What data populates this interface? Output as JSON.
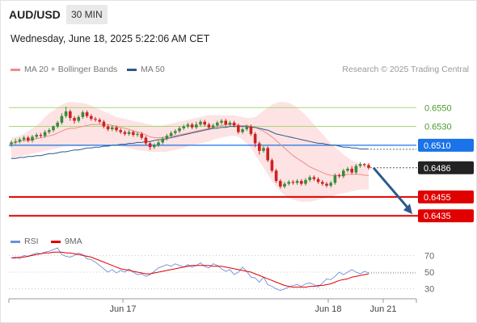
{
  "header": {
    "symbol": "AUD/USD",
    "interval": "30 MIN"
  },
  "datetime": "Wednesday, June 18, 2025 5:22:06 AM CET",
  "legend": {
    "ma20_label": "MA 20 + Bollinger Bands",
    "ma20_color": "#f08c8c",
    "ma50_label": "MA 50",
    "ma50_color": "#2d5a8e",
    "credit": "Research © 2025 Trading Central"
  },
  "rsi_legend": {
    "rsi_label": "RSI",
    "rsi_color": "#6b8fdc",
    "ma9_label": "9MA",
    "ma9_color": "#e00000"
  },
  "chart_data": [
    {
      "type": "candlestick",
      "title": "AUD/USD",
      "ylim": [
        0.6424,
        0.6582
      ],
      "x_ticks": [
        "Jun 17",
        "Jun 18",
        "Jun 21"
      ],
      "levels": [
        {
          "value": 0.655,
          "label": "0.6550",
          "role": "resistance",
          "color": "#a8d878"
        },
        {
          "value": 0.653,
          "label": "0.6530",
          "role": "resistance",
          "color": "#a8d878"
        },
        {
          "value": 0.651,
          "label": "0.6510",
          "role": "pivot",
          "color": "#1a73e8"
        },
        {
          "value": 0.6486,
          "label": "0.6486",
          "role": "last",
          "color": "#222222"
        },
        {
          "value": 0.6455,
          "label": "0.6455",
          "role": "target",
          "color": "#e00000"
        },
        {
          "value": 0.6435,
          "label": "0.6435",
          "role": "target",
          "color": "#e00000"
        }
      ],
      "forecast_arrow": {
        "from": 0.6486,
        "to": 0.6435,
        "color": "#2d5a8e"
      },
      "candles": [
        [
          0.6511,
          0.6513,
          0.6508,
          0.6515
        ],
        [
          0.6513,
          0.6514,
          0.6511,
          0.6517
        ],
        [
          0.6514,
          0.6516,
          0.6512,
          0.6518
        ],
        [
          0.6516,
          0.6518,
          0.6514,
          0.652
        ],
        [
          0.6518,
          0.6515,
          0.6513,
          0.652
        ],
        [
          0.6515,
          0.6519,
          0.6513,
          0.6521
        ],
        [
          0.6519,
          0.6521,
          0.6517,
          0.6523
        ],
        [
          0.6521,
          0.652,
          0.6518,
          0.6523
        ],
        [
          0.652,
          0.6524,
          0.6518,
          0.6526
        ],
        [
          0.6524,
          0.6526,
          0.6522,
          0.6528
        ],
        [
          0.6526,
          0.653,
          0.6524,
          0.6531
        ],
        [
          0.653,
          0.6534,
          0.6528,
          0.6536
        ],
        [
          0.6534,
          0.6541,
          0.6532,
          0.6544
        ],
        [
          0.6541,
          0.6546,
          0.6539,
          0.6551
        ],
        [
          0.6546,
          0.6539,
          0.6536,
          0.6548
        ],
        [
          0.6539,
          0.6536,
          0.6533,
          0.6541
        ],
        [
          0.6536,
          0.654,
          0.6534,
          0.6542
        ],
        [
          0.654,
          0.6545,
          0.6538,
          0.6547
        ],
        [
          0.6545,
          0.6541,
          0.6539,
          0.6547
        ],
        [
          0.6541,
          0.6538,
          0.6536,
          0.6543
        ],
        [
          0.6538,
          0.6537,
          0.6535,
          0.654
        ],
        [
          0.6537,
          0.6535,
          0.6533,
          0.6539
        ],
        [
          0.6535,
          0.653,
          0.6528,
          0.6537
        ],
        [
          0.653,
          0.6527,
          0.6525,
          0.6532
        ],
        [
          0.6527,
          0.6529,
          0.6525,
          0.6531
        ],
        [
          0.6529,
          0.6526,
          0.6524,
          0.6531
        ],
        [
          0.6526,
          0.6524,
          0.6522,
          0.6528
        ],
        [
          0.6524,
          0.6522,
          0.652,
          0.6526
        ],
        [
          0.6522,
          0.6524,
          0.652,
          0.6526
        ],
        [
          0.6524,
          0.6521,
          0.6519,
          0.6526
        ],
        [
          0.6521,
          0.6522,
          0.6519,
          0.6524
        ],
        [
          0.6522,
          0.6518,
          0.6516,
          0.6524
        ],
        [
          0.6518,
          0.6512,
          0.651,
          0.652
        ],
        [
          0.6512,
          0.6508,
          0.6505,
          0.6514
        ],
        [
          0.6508,
          0.651,
          0.6506,
          0.6512
        ],
        [
          0.651,
          0.6513,
          0.6508,
          0.6515
        ],
        [
          0.6513,
          0.6517,
          0.6511,
          0.6519
        ],
        [
          0.6517,
          0.652,
          0.6515,
          0.6522
        ],
        [
          0.652,
          0.6523,
          0.6518,
          0.6525
        ],
        [
          0.6523,
          0.6525,
          0.6521,
          0.6527
        ],
        [
          0.6525,
          0.6528,
          0.6523,
          0.653
        ],
        [
          0.6528,
          0.653,
          0.6526,
          0.6532
        ],
        [
          0.653,
          0.6532,
          0.6528,
          0.6534
        ],
        [
          0.6532,
          0.6529,
          0.6527,
          0.6534
        ],
        [
          0.6529,
          0.6532,
          0.6527,
          0.6535
        ],
        [
          0.6532,
          0.6535,
          0.653,
          0.6537
        ],
        [
          0.6535,
          0.6532,
          0.653,
          0.6537
        ],
        [
          0.6532,
          0.6529,
          0.6527,
          0.6534
        ],
        [
          0.6529,
          0.6531,
          0.6527,
          0.6533
        ],
        [
          0.6531,
          0.6534,
          0.6529,
          0.6536
        ],
        [
          0.6534,
          0.6536,
          0.6532,
          0.6538
        ],
        [
          0.6536,
          0.6532,
          0.653,
          0.6538
        ],
        [
          0.6532,
          0.6534,
          0.653,
          0.6536
        ],
        [
          0.6534,
          0.6531,
          0.6529,
          0.6536
        ],
        [
          0.6531,
          0.6524,
          0.6522,
          0.6533
        ],
        [
          0.6524,
          0.6527,
          0.6522,
          0.6529
        ],
        [
          0.6527,
          0.653,
          0.6525,
          0.6532
        ],
        [
          0.653,
          0.6522,
          0.652,
          0.6532
        ],
        [
          0.6522,
          0.6512,
          0.6508,
          0.6524
        ],
        [
          0.6512,
          0.6504,
          0.65,
          0.6514
        ],
        [
          0.6504,
          0.6507,
          0.6502,
          0.6509
        ],
        [
          0.6507,
          0.6494,
          0.6492,
          0.6509
        ],
        [
          0.6494,
          0.6483,
          0.6481,
          0.6496
        ],
        [
          0.6483,
          0.6472,
          0.647,
          0.6485
        ],
        [
          0.6472,
          0.6466,
          0.6464,
          0.6474
        ],
        [
          0.6466,
          0.6469,
          0.6464,
          0.6471
        ],
        [
          0.6469,
          0.6471,
          0.6467,
          0.6473
        ],
        [
          0.6471,
          0.647,
          0.6468,
          0.6473
        ],
        [
          0.647,
          0.6472,
          0.6468,
          0.6474
        ],
        [
          0.6472,
          0.6469,
          0.6467,
          0.6474
        ],
        [
          0.6469,
          0.6473,
          0.6467,
          0.6475
        ],
        [
          0.6473,
          0.6476,
          0.6471,
          0.6478
        ],
        [
          0.6476,
          0.6474,
          0.6472,
          0.6478
        ],
        [
          0.6474,
          0.6471,
          0.6469,
          0.6476
        ],
        [
          0.6471,
          0.6469,
          0.6467,
          0.6473
        ],
        [
          0.6469,
          0.6467,
          0.6465,
          0.6471
        ],
        [
          0.6467,
          0.647,
          0.6465,
          0.6472
        ],
        [
          0.647,
          0.6478,
          0.6468,
          0.648
        ],
        [
          0.6478,
          0.6477,
          0.6475,
          0.648
        ],
        [
          0.6477,
          0.6483,
          0.6475,
          0.6485
        ],
        [
          0.6483,
          0.6485,
          0.6481,
          0.6487
        ],
        [
          0.6485,
          0.6481,
          0.6479,
          0.6488
        ],
        [
          0.6481,
          0.6488,
          0.6479,
          0.649
        ],
        [
          0.6488,
          0.649,
          0.6486,
          0.6492
        ],
        [
          0.649,
          0.6489,
          0.6487,
          0.6491
        ],
        [
          0.6489,
          0.6486,
          0.6484,
          0.6491
        ]
      ],
      "ma20": [
        0.6512,
        0.6513,
        0.6514,
        0.6515,
        0.6515,
        0.6516,
        0.6517,
        0.6518,
        0.6519,
        0.652,
        0.6521,
        0.6523,
        0.6525,
        0.6527,
        0.6528,
        0.6528,
        0.6529,
        0.653,
        0.6531,
        0.6532,
        0.6532,
        0.6532,
        0.6532,
        0.6532,
        0.6531,
        0.653,
        0.6529,
        0.6528,
        0.6527,
        0.6525,
        0.6524,
        0.6523,
        0.6521,
        0.6519,
        0.6518,
        0.6518,
        0.6518,
        0.6519,
        0.652,
        0.652,
        0.6521,
        0.6522,
        0.6523,
        0.6524,
        0.6525,
        0.6526,
        0.6527,
        0.6528,
        0.6529,
        0.653,
        0.6531,
        0.6532,
        0.6532,
        0.6532,
        0.6531,
        0.6531,
        0.6531,
        0.653,
        0.6529,
        0.6527,
        0.6525,
        0.6522,
        0.6519,
        0.6515,
        0.6511,
        0.6507,
        0.6503,
        0.6499,
        0.6496,
        0.6493,
        0.649,
        0.6487,
        0.6485,
        0.6483,
        0.6481,
        0.6479,
        0.6478,
        0.6478,
        0.6478,
        0.6478,
        0.6479,
        0.6479,
        0.6479,
        0.6479,
        0.6478,
        0.6478
      ],
      "bb_upper": [
        0.6518,
        0.6519,
        0.652,
        0.6522,
        0.6525,
        0.6528,
        0.6531,
        0.6535,
        0.654,
        0.6544,
        0.6547,
        0.655,
        0.6553,
        0.6555,
        0.6556,
        0.6556,
        0.6555,
        0.6555,
        0.6554,
        0.6552,
        0.655,
        0.6548,
        0.6546,
        0.6544,
        0.6542,
        0.654,
        0.6539,
        0.6538,
        0.6537,
        0.6536,
        0.6535,
        0.6534,
        0.6533,
        0.6532,
        0.6531,
        0.6531,
        0.6531,
        0.6532,
        0.6533,
        0.6534,
        0.6535,
        0.6536,
        0.6537,
        0.6538,
        0.6539,
        0.654,
        0.6541,
        0.6542,
        0.6542,
        0.6542,
        0.6542,
        0.6542,
        0.6542,
        0.6542,
        0.6541,
        0.654,
        0.6539,
        0.6539,
        0.654,
        0.6543,
        0.6547,
        0.655,
        0.6553,
        0.6555,
        0.6556,
        0.6556,
        0.6555,
        0.6553,
        0.655,
        0.6546,
        0.6542,
        0.6537,
        0.6532,
        0.6527,
        0.6522,
        0.6517,
        0.6512,
        0.6508,
        0.6504,
        0.65,
        0.6497,
        0.6494,
        0.6492,
        0.649,
        0.6489,
        0.6488
      ],
      "bb_lower": [
        0.6496,
        0.6497,
        0.6498,
        0.6499,
        0.65,
        0.6501,
        0.6502,
        0.6503,
        0.6504,
        0.6505,
        0.6506,
        0.6507,
        0.6508,
        0.6509,
        0.6509,
        0.6509,
        0.6509,
        0.6509,
        0.6509,
        0.651,
        0.651,
        0.6511,
        0.6511,
        0.6511,
        0.6511,
        0.651,
        0.6509,
        0.6508,
        0.6507,
        0.6506,
        0.6505,
        0.6504,
        0.6504,
        0.6503,
        0.6503,
        0.6503,
        0.6503,
        0.6503,
        0.6504,
        0.6505,
        0.6506,
        0.6507,
        0.6509,
        0.651,
        0.6511,
        0.6512,
        0.6513,
        0.6514,
        0.6516,
        0.6517,
        0.6518,
        0.6519,
        0.652,
        0.652,
        0.6519,
        0.6516,
        0.6512,
        0.6507,
        0.65,
        0.6493,
        0.6486,
        0.6479,
        0.6472,
        0.6466,
        0.6461,
        0.6457,
        0.6454,
        0.6452,
        0.6451,
        0.645,
        0.645,
        0.645,
        0.6451,
        0.6452,
        0.6453,
        0.6454,
        0.6455,
        0.6457,
        0.6458,
        0.6459,
        0.646,
        0.6461,
        0.6462,
        0.6463,
        0.6463,
        0.6463
      ],
      "ma50": [
        0.6496,
        0.6496,
        0.6497,
        0.6497,
        0.6498,
        0.6498,
        0.6499,
        0.6499,
        0.65,
        0.6501,
        0.6501,
        0.6502,
        0.6503,
        0.6503,
        0.6504,
        0.6505,
        0.6505,
        0.6506,
        0.6507,
        0.6507,
        0.6508,
        0.6508,
        0.6509,
        0.6509,
        0.651,
        0.651,
        0.6511,
        0.6511,
        0.6512,
        0.6512,
        0.6513,
        0.6513,
        0.6514,
        0.6514,
        0.6515,
        0.6516,
        0.6516,
        0.6517,
        0.6518,
        0.6519,
        0.652,
        0.6521,
        0.6522,
        0.6523,
        0.6524,
        0.6525,
        0.6526,
        0.6527,
        0.6528,
        0.6528,
        0.6529,
        0.6529,
        0.653,
        0.653,
        0.653,
        0.653,
        0.653,
        0.6529,
        0.6529,
        0.6528,
        0.6527,
        0.6526,
        0.6524,
        0.6522,
        0.6521,
        0.652,
        0.6519,
        0.6518,
        0.6517,
        0.6516,
        0.6515,
        0.6514,
        0.6513,
        0.6512,
        0.6512,
        0.6511,
        0.651,
        0.651,
        0.6509,
        0.6508,
        0.6508,
        0.6507,
        0.6507,
        0.6506,
        0.6506,
        0.6506
      ]
    },
    {
      "type": "line",
      "title": "RSI",
      "ylim": [
        20,
        80
      ],
      "y_ticks": [
        "70",
        "50",
        "30"
      ],
      "series": [
        {
          "name": "RSI",
          "values": [
            67,
            68,
            66,
            70,
            69,
            71,
            73,
            72,
            74,
            75,
            77,
            79,
            71,
            69,
            68,
            70,
            73,
            71,
            66,
            65,
            62,
            58,
            54,
            50,
            53,
            49,
            52,
            50,
            54,
            50,
            47,
            48,
            45,
            47,
            51,
            55,
            57,
            59,
            57,
            60,
            58,
            56,
            59,
            56,
            58,
            61,
            57,
            55,
            60,
            58,
            54,
            51,
            53,
            47,
            50,
            56,
            51,
            44,
            43,
            38,
            44,
            35,
            33,
            30,
            28,
            30,
            32,
            34,
            35,
            33,
            36,
            37,
            35,
            32,
            37,
            42,
            41,
            45,
            50,
            47,
            50,
            53,
            50,
            48,
            51,
            49
          ]
        },
        {
          "name": "9MA",
          "values": [
            67,
            67,
            68,
            68,
            69,
            70,
            71,
            72,
            73,
            73,
            74,
            74,
            74,
            73,
            73,
            72,
            71,
            70,
            69,
            68,
            66,
            64,
            62,
            60,
            58,
            56,
            54,
            53,
            52,
            51,
            50,
            49,
            48,
            48,
            49,
            50,
            51,
            52,
            53,
            54,
            55,
            56,
            57,
            58,
            58,
            58,
            58,
            58,
            57,
            57,
            57,
            56,
            55,
            54,
            53,
            52,
            51,
            50,
            48,
            46,
            44,
            42,
            40,
            38,
            36,
            34,
            33,
            32,
            32,
            32,
            32,
            33,
            33,
            34,
            34,
            35,
            36,
            38,
            40,
            41,
            42,
            44,
            45,
            46,
            47,
            48
          ]
        }
      ]
    }
  ]
}
